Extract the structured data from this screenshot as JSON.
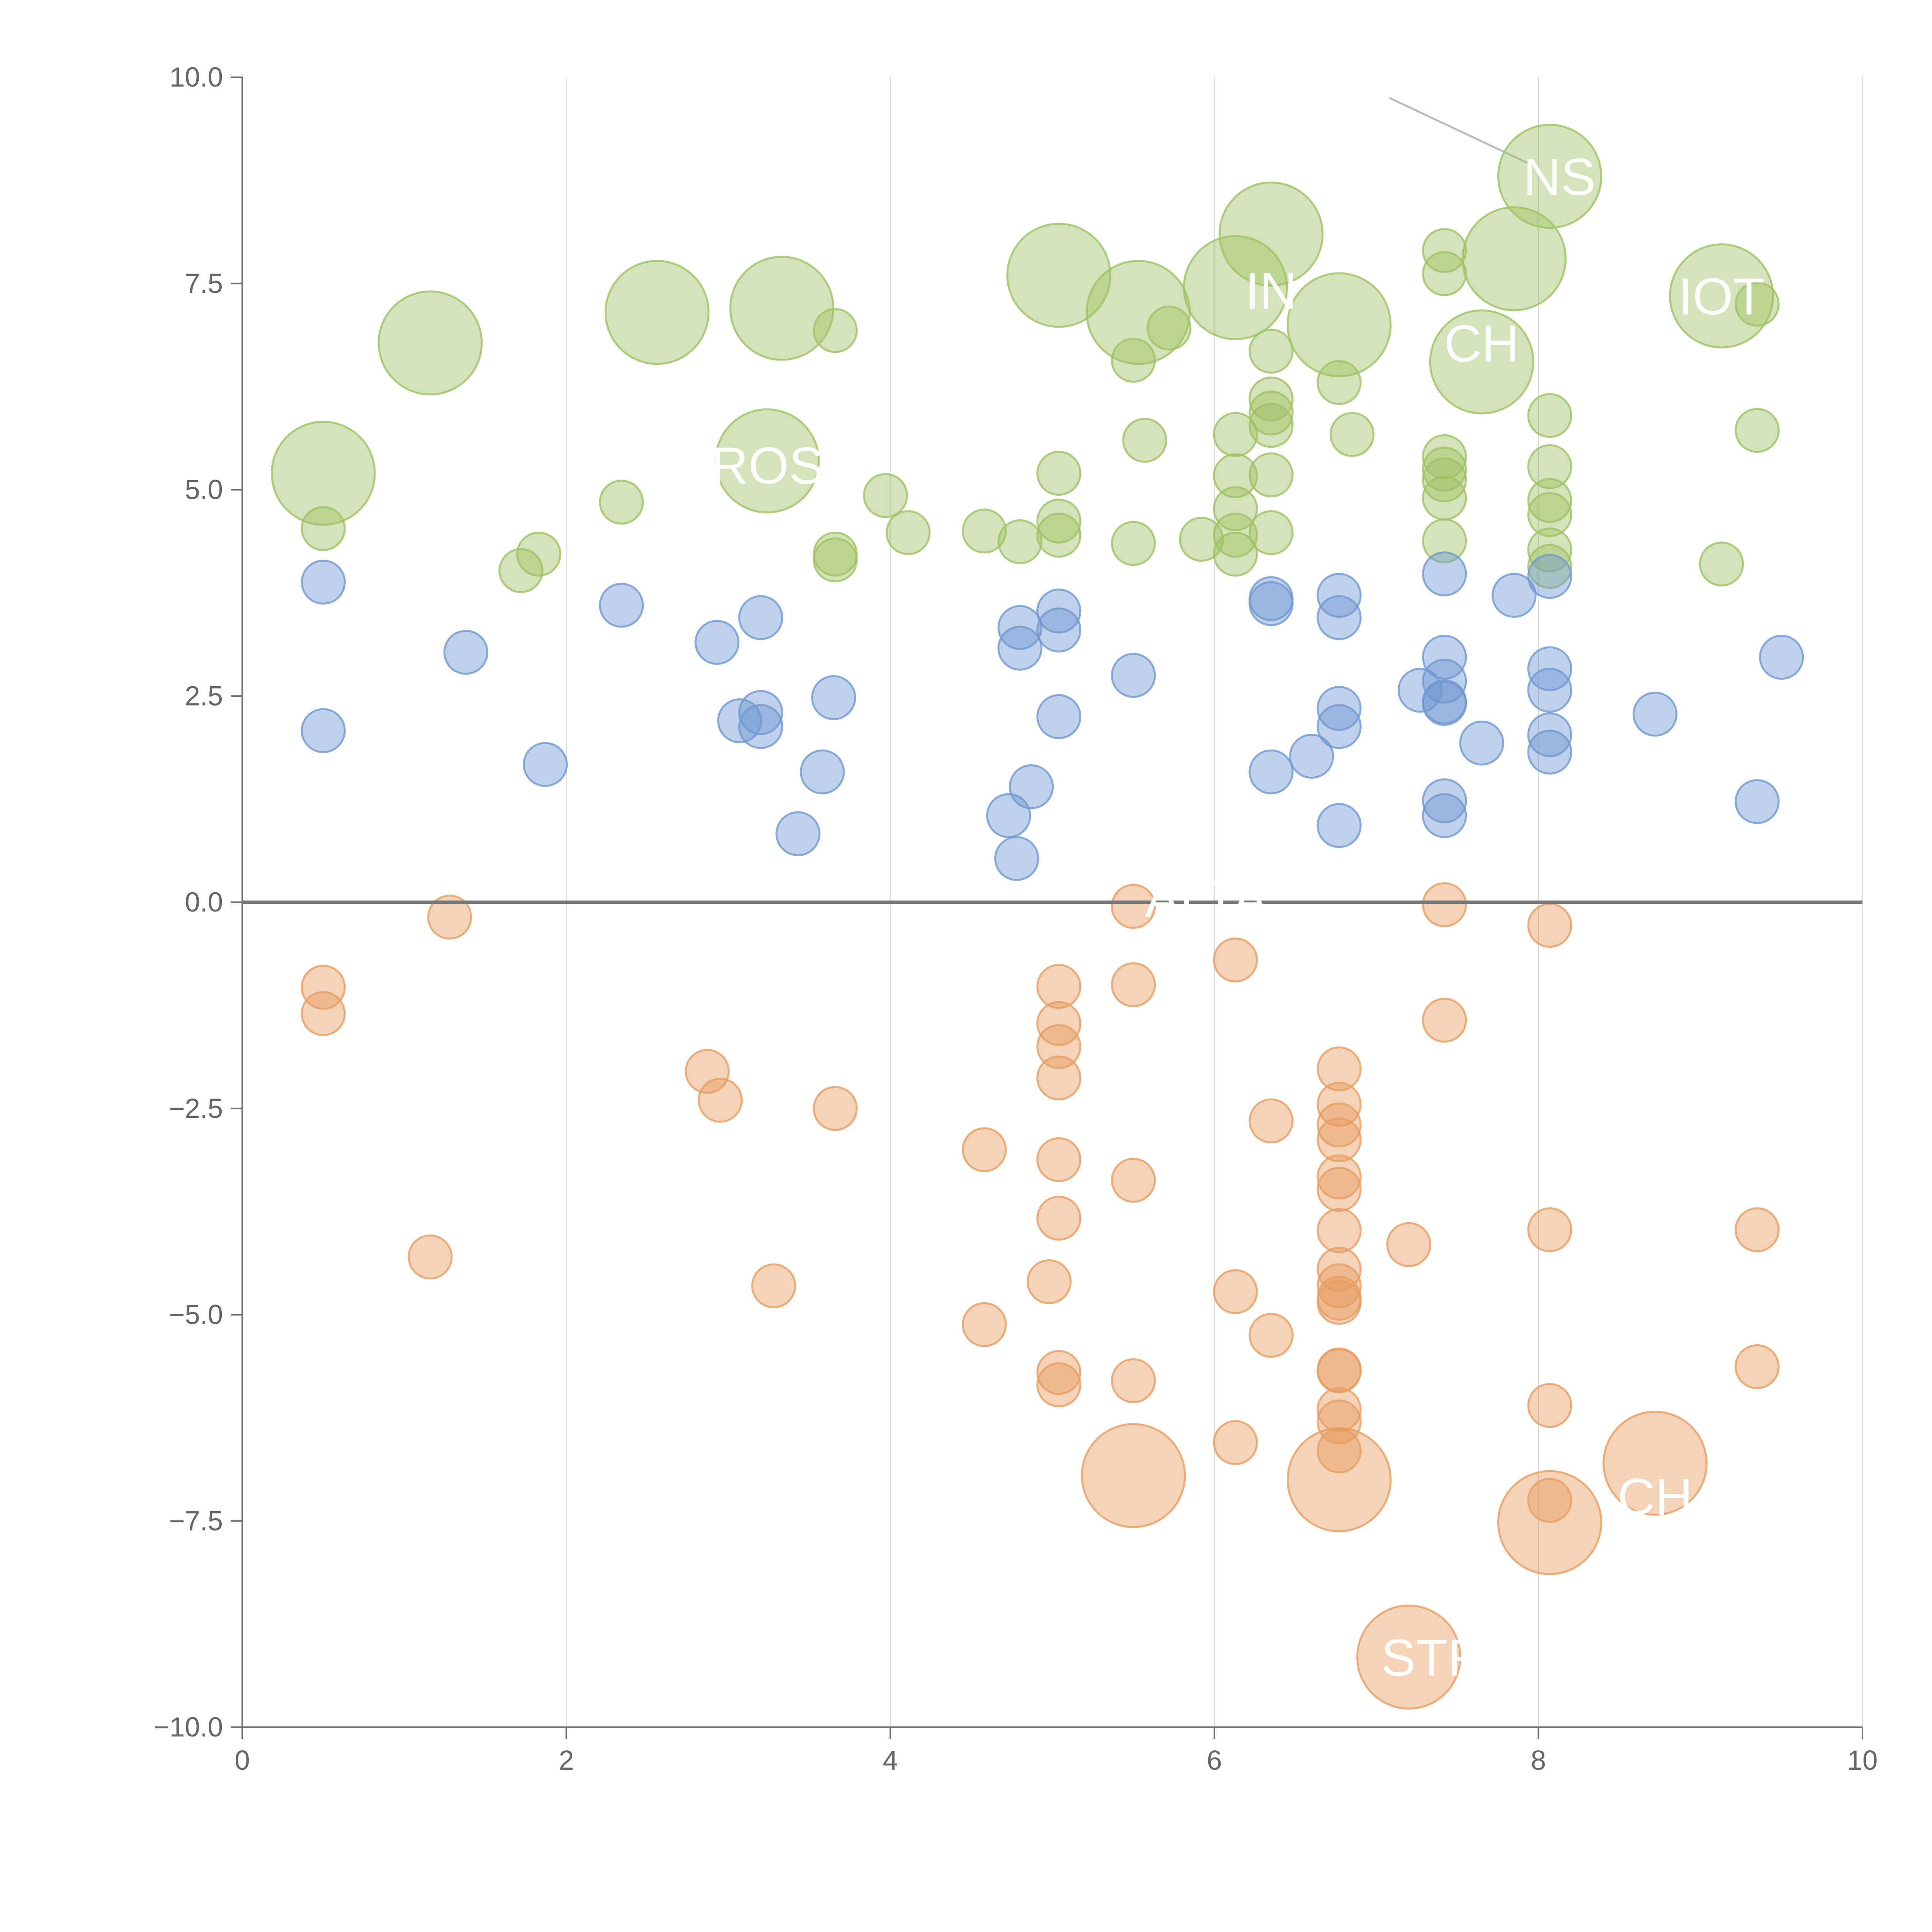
{
  "chart_data": {
    "type": "scatter",
    "title": "",
    "xlabel": "",
    "ylabel": "",
    "xlim": [
      0,
      10
    ],
    "ylim": [
      -10,
      10
    ],
    "x_ticks": [
      0,
      2,
      4,
      6,
      8,
      10
    ],
    "x_tick_labels": [
      "0",
      "2",
      "4",
      "6",
      "8",
      "10"
    ],
    "y_ticks": [
      -10,
      -7.5,
      -5,
      -2.5,
      0,
      2.5,
      5,
      7.5,
      10
    ],
    "y_tick_labels": [
      "−10.0",
      "−7.5",
      "−5.0",
      "−2.5",
      "0.0",
      "2.5",
      "5.0",
      "7.5",
      "10.0"
    ],
    "grid": "vertical",
    "zero_line": true,
    "series": [
      {
        "name": "green",
        "color": "#9dc163",
        "points": [
          [
            8.07,
            8.8,
            12.7
          ],
          [
            6.35,
            8.1,
            12.7
          ],
          [
            5.04,
            7.6,
            12.7
          ],
          [
            3.33,
            7.2,
            12.7
          ],
          [
            2.56,
            7.15,
            12.7
          ],
          [
            5.53,
            7.15,
            12.7
          ],
          [
            6.13,
            7.45,
            12.7
          ],
          [
            7.85,
            7.8,
            12.7
          ],
          [
            9.13,
            7.35,
            12.7
          ],
          [
            6.77,
            7.0,
            12.7
          ],
          [
            1.16,
            6.78,
            12.7
          ],
          [
            7.65,
            6.55,
            12.7
          ],
          [
            0.5,
            5.2,
            12.7
          ],
          [
            3.24,
            5.35,
            12.7
          ],
          [
            7.42,
            7.9,
            5.3
          ],
          [
            7.42,
            7.62,
            5.3
          ],
          [
            9.35,
            7.25,
            5.3
          ],
          [
            3.66,
            6.93,
            5.3
          ],
          [
            5.72,
            6.96,
            5.3
          ],
          [
            5.5,
            6.57,
            5.3
          ],
          [
            6.35,
            6.68,
            5.3
          ],
          [
            6.77,
            6.3,
            5.3
          ],
          [
            6.35,
            6.1,
            5.3
          ],
          [
            6.35,
            5.93,
            5.3
          ],
          [
            8.07,
            5.9,
            5.3
          ],
          [
            6.35,
            5.78,
            5.3
          ],
          [
            9.35,
            5.72,
            5.3
          ],
          [
            6.13,
            5.67,
            5.3
          ],
          [
            6.85,
            5.67,
            5.3
          ],
          [
            5.57,
            5.6,
            5.3
          ],
          [
            7.42,
            5.4,
            5.3
          ],
          [
            7.42,
            5.25,
            5.3
          ],
          [
            8.07,
            5.28,
            5.3
          ],
          [
            5.04,
            5.2,
            5.3
          ],
          [
            6.13,
            5.17,
            5.3
          ],
          [
            6.35,
            5.18,
            5.3
          ],
          [
            7.42,
            5.12,
            5.3
          ],
          [
            3.97,
            4.93,
            5.3
          ],
          [
            7.42,
            4.9,
            5.3
          ],
          [
            8.07,
            4.87,
            5.3
          ],
          [
            2.34,
            4.85,
            5.3
          ],
          [
            6.13,
            4.77,
            5.3
          ],
          [
            8.07,
            4.7,
            5.3
          ],
          [
            5.04,
            4.62,
            5.3
          ],
          [
            0.5,
            4.53,
            5.3
          ],
          [
            4.58,
            4.5,
            5.3
          ],
          [
            4.11,
            4.48,
            5.3
          ],
          [
            6.35,
            4.48,
            5.3
          ],
          [
            5.04,
            4.45,
            5.3
          ],
          [
            6.13,
            4.45,
            5.3
          ],
          [
            5.92,
            4.4,
            5.3
          ],
          [
            7.42,
            4.38,
            5.3
          ],
          [
            4.8,
            4.37,
            5.3
          ],
          [
            5.5,
            4.35,
            5.3
          ],
          [
            8.07,
            4.27,
            5.3
          ],
          [
            1.83,
            4.22,
            5.3
          ],
          [
            3.66,
            4.22,
            5.3
          ],
          [
            6.13,
            4.22,
            5.3
          ],
          [
            3.66,
            4.15,
            5.3
          ],
          [
            9.13,
            4.1,
            5.3
          ],
          [
            8.07,
            4.07,
            5.3
          ],
          [
            1.72,
            4.02,
            5.3
          ]
        ]
      },
      {
        "name": "blue",
        "color": "#6f97d0",
        "points": [
          [
            0.5,
            3.88,
            5.3
          ],
          [
            8.07,
            3.95,
            5.3
          ],
          [
            7.42,
            3.98,
            5.3
          ],
          [
            7.85,
            3.72,
            5.3
          ],
          [
            6.77,
            3.72,
            5.3
          ],
          [
            6.35,
            3.68,
            5.3
          ],
          [
            6.35,
            3.62,
            5.3
          ],
          [
            2.34,
            3.6,
            5.3
          ],
          [
            5.04,
            3.53,
            5.3
          ],
          [
            3.2,
            3.45,
            5.3
          ],
          [
            6.77,
            3.45,
            5.3
          ],
          [
            4.8,
            3.33,
            5.3
          ],
          [
            5.04,
            3.3,
            5.3
          ],
          [
            2.93,
            3.15,
            5.3
          ],
          [
            4.8,
            3.08,
            5.3
          ],
          [
            1.38,
            3.03,
            5.3
          ],
          [
            9.5,
            2.97,
            5.3
          ],
          [
            7.42,
            2.97,
            5.3
          ],
          [
            8.07,
            2.83,
            5.3
          ],
          [
            5.5,
            2.75,
            5.3
          ],
          [
            7.42,
            2.68,
            5.3
          ],
          [
            7.27,
            2.57,
            5.3
          ],
          [
            8.07,
            2.57,
            5.3
          ],
          [
            3.65,
            2.48,
            5.3
          ],
          [
            7.42,
            2.43,
            5.3
          ],
          [
            7.42,
            2.41,
            5.3
          ],
          [
            6.77,
            2.35,
            5.3
          ],
          [
            3.2,
            2.3,
            5.3
          ],
          [
            8.72,
            2.28,
            5.3
          ],
          [
            5.04,
            2.25,
            5.3
          ],
          [
            3.07,
            2.2,
            5.3
          ],
          [
            6.77,
            2.13,
            5.3
          ],
          [
            3.2,
            2.13,
            5.3
          ],
          [
            0.5,
            2.08,
            5.3
          ],
          [
            8.07,
            2.03,
            5.3
          ],
          [
            7.65,
            1.93,
            5.3
          ],
          [
            8.07,
            1.82,
            5.3
          ],
          [
            6.6,
            1.77,
            5.3
          ],
          [
            1.87,
            1.67,
            5.3
          ],
          [
            3.58,
            1.58,
            5.3
          ],
          [
            6.35,
            1.58,
            5.3
          ],
          [
            7.42,
            1.23,
            5.3
          ],
          [
            9.35,
            1.22,
            5.3
          ],
          [
            4.87,
            1.4,
            5.3
          ],
          [
            4.73,
            1.05,
            5.3
          ],
          [
            7.42,
            1.05,
            5.3
          ],
          [
            6.77,
            0.93,
            5.3
          ],
          [
            3.43,
            0.83,
            5.3
          ],
          [
            4.78,
            0.53,
            5.3
          ]
        ]
      },
      {
        "name": "orange",
        "color": "#e69c60",
        "points": [
          [
            5.5,
            -6.95,
            12.7
          ],
          [
            6.77,
            -7.0,
            12.7
          ],
          [
            8.07,
            -7.52,
            12.7
          ],
          [
            8.72,
            -6.8,
            12.7
          ],
          [
            7.2,
            -9.15,
            12.7
          ],
          [
            7.42,
            -0.03,
            5.3
          ],
          [
            5.5,
            -0.05,
            5.3
          ],
          [
            1.28,
            -0.18,
            5.3
          ],
          [
            8.07,
            -0.28,
            5.3
          ],
          [
            6.13,
            -0.7,
            5.3
          ],
          [
            0.5,
            -1.03,
            5.3
          ],
          [
            5.04,
            -1.02,
            5.3
          ],
          [
            5.5,
            -1.0,
            5.3
          ],
          [
            0.5,
            -1.35,
            5.3
          ],
          [
            7.42,
            -1.43,
            5.3
          ],
          [
            5.04,
            -1.47,
            5.3
          ],
          [
            5.04,
            -1.75,
            5.3
          ],
          [
            6.77,
            -2.02,
            5.3
          ],
          [
            2.87,
            -2.05,
            5.3
          ],
          [
            5.04,
            -2.13,
            5.3
          ],
          [
            2.95,
            -2.4,
            5.3
          ],
          [
            6.77,
            -2.45,
            5.3
          ],
          [
            3.66,
            -2.5,
            5.3
          ],
          [
            6.35,
            -2.65,
            5.3
          ],
          [
            6.77,
            -2.7,
            5.3
          ],
          [
            6.77,
            -2.88,
            5.3
          ],
          [
            4.58,
            -3.0,
            5.3
          ],
          [
            5.04,
            -3.12,
            5.3
          ],
          [
            6.77,
            -3.33,
            5.3
          ],
          [
            5.5,
            -3.37,
            5.3
          ],
          [
            6.77,
            -3.48,
            5.3
          ],
          [
            5.04,
            -3.83,
            5.3
          ],
          [
            6.77,
            -3.98,
            5.3
          ],
          [
            8.07,
            -3.97,
            5.3
          ],
          [
            9.35,
            -3.97,
            5.3
          ],
          [
            7.2,
            -4.15,
            5.3
          ],
          [
            1.16,
            -4.3,
            5.3
          ],
          [
            6.77,
            -4.45,
            5.3
          ],
          [
            3.28,
            -4.65,
            5.3
          ],
          [
            4.98,
            -4.6,
            5.3
          ],
          [
            6.77,
            -4.65,
            5.3
          ],
          [
            6.13,
            -4.72,
            5.3
          ],
          [
            6.77,
            -4.8,
            5.3
          ],
          [
            6.77,
            -4.85,
            5.3
          ],
          [
            4.58,
            -5.12,
            5.3
          ],
          [
            6.35,
            -5.25,
            5.3
          ],
          [
            6.77,
            -5.67,
            5.3
          ],
          [
            6.77,
            -5.68,
            5.3
          ],
          [
            5.04,
            -5.7,
            5.3
          ],
          [
            9.35,
            -5.63,
            5.3
          ],
          [
            5.5,
            -5.8,
            5.3
          ],
          [
            5.04,
            -5.85,
            5.3
          ],
          [
            8.07,
            -6.1,
            5.3
          ],
          [
            6.77,
            -6.15,
            5.3
          ],
          [
            6.77,
            -6.3,
            5.3
          ],
          [
            6.13,
            -6.55,
            5.3
          ],
          [
            6.77,
            -6.65,
            5.3
          ],
          [
            8.07,
            -7.25,
            5.3
          ]
        ]
      }
    ],
    "annotations": [
      {
        "text": "NS",
        "x": 8.13,
        "y": 8.8
      },
      {
        "text": "IN",
        "x": 6.35,
        "y": 7.42
      },
      {
        "text": "IOT",
        "x": 9.13,
        "y": 7.35
      },
      {
        "text": "CH",
        "x": 7.65,
        "y": 6.78
      },
      {
        "text": "ROS",
        "x": 3.24,
        "y": 5.3
      },
      {
        "text": "ALTA",
        "x": 5.95,
        "y": 0.05
      },
      {
        "text": "STR",
        "x": 7.35,
        "y": -9.15
      },
      {
        "text": "CH",
        "x": 8.72,
        "y": -7.2
      }
    ]
  }
}
